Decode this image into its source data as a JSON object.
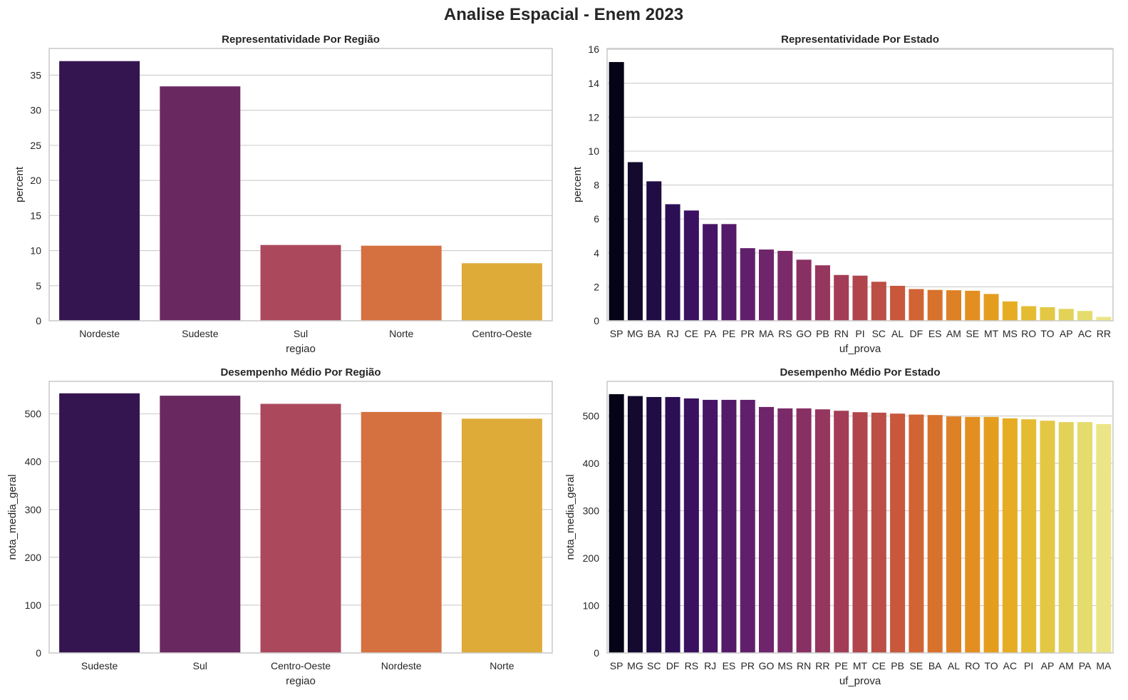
{
  "figure": {
    "title": "Analise Espacial - Enem 2023"
  },
  "chart_data": [
    {
      "id": "regiao_percent",
      "type": "bar",
      "title": "Representatividade Por Região",
      "xlabel": "regiao",
      "ylabel": "percent",
      "categories": [
        "Nordeste",
        "Sudeste",
        "Sul",
        "Norte",
        "Centro-Oeste"
      ],
      "values": [
        37.0,
        33.4,
        10.8,
        10.7,
        8.2
      ],
      "ylim": [
        0,
        38.8
      ],
      "yticks": [
        0,
        5,
        10,
        15,
        20,
        25,
        30,
        35
      ],
      "colors": [
        "#35154f",
        "#6a2860",
        "#ab485c",
        "#d57140",
        "#deab39"
      ],
      "grid": true,
      "legend": "none"
    },
    {
      "id": "uf_percent",
      "type": "bar",
      "title": "Representatividade Por Estado",
      "xlabel": "uf_prova",
      "ylabel": "percent",
      "categories": [
        "SP",
        "MG",
        "BA",
        "RJ",
        "CE",
        "PA",
        "PE",
        "PR",
        "MA",
        "RS",
        "GO",
        "PB",
        "RN",
        "PI",
        "SC",
        "AL",
        "DF",
        "ES",
        "AM",
        "SE",
        "MT",
        "MS",
        "RO",
        "TO",
        "AP",
        "AC",
        "RR"
      ],
      "values": [
        15.25,
        9.35,
        8.22,
        6.87,
        6.5,
        5.7,
        5.7,
        4.28,
        4.2,
        4.12,
        3.6,
        3.27,
        2.7,
        2.66,
        2.3,
        2.06,
        1.87,
        1.82,
        1.8,
        1.77,
        1.58,
        1.14,
        0.86,
        0.8,
        0.7,
        0.58,
        0.23
      ],
      "ylim": [
        0,
        16.05
      ],
      "yticks": [
        0,
        2,
        4,
        6,
        8,
        10,
        12,
        14,
        16
      ],
      "colors": [
        "#050416",
        "#130a2e",
        "#1f0d43",
        "#2b0f55",
        "#391160",
        "#461566",
        "#531a69",
        "#601f6b",
        "#6e256b",
        "#7a2a68",
        "#883064",
        "#95365f",
        "#a33d57",
        "#b0454d",
        "#bb4e45",
        "#c8573c",
        "#d16434",
        "#d8712b",
        "#de8025",
        "#e38e21",
        "#e59d20",
        "#e6ac24",
        "#e5bb32",
        "#e3c843",
        "#e2d257",
        "#e4dc6c",
        "#ebe587"
      ],
      "grid": true,
      "legend": "none"
    },
    {
      "id": "regiao_nota",
      "type": "bar",
      "title": "Desempenho Médio Por Região",
      "xlabel": "regiao",
      "ylabel": "nota_media_geral",
      "categories": [
        "Sudeste",
        "Sul",
        "Centro-Oeste",
        "Nordeste",
        "Norte"
      ],
      "values": [
        543,
        538,
        521,
        504,
        490
      ],
      "ylim": [
        0,
        568
      ],
      "yticks": [
        0,
        100,
        200,
        300,
        400,
        500
      ],
      "colors": [
        "#35154f",
        "#6a2860",
        "#ab485c",
        "#d57140",
        "#deab39"
      ],
      "grid": true,
      "legend": "none"
    },
    {
      "id": "uf_nota",
      "type": "bar",
      "title": "Desempenho Médio Por Estado",
      "xlabel": "uf_prova",
      "ylabel": "nota_media_geral",
      "categories": [
        "SP",
        "MG",
        "SC",
        "DF",
        "RS",
        "RJ",
        "ES",
        "PR",
        "GO",
        "MS",
        "RN",
        "RR",
        "PE",
        "MT",
        "CE",
        "PB",
        "SE",
        "BA",
        "AL",
        "RO",
        "TO",
        "AC",
        "PI",
        "AP",
        "AM",
        "PA",
        "MA"
      ],
      "values": [
        546,
        542,
        540,
        540,
        537,
        534,
        534,
        534,
        519,
        516,
        516,
        514,
        511,
        508,
        507,
        505,
        503,
        502,
        499,
        498,
        498,
        495,
        493,
        490,
        487,
        487,
        483
      ],
      "ylim": [
        0,
        573
      ],
      "yticks": [
        0,
        100,
        200,
        300,
        400,
        500
      ],
      "colors": [
        "#050416",
        "#130a2e",
        "#1f0d43",
        "#2b0f55",
        "#391160",
        "#461566",
        "#531a69",
        "#601f6b",
        "#6e256b",
        "#7a2a68",
        "#883064",
        "#95365f",
        "#a33d57",
        "#b0454d",
        "#bb4e45",
        "#c8573c",
        "#d16434",
        "#d8712b",
        "#de8025",
        "#e38e21",
        "#e59d20",
        "#e6ac24",
        "#e5bb32",
        "#e3c843",
        "#e2d257",
        "#e4dc6c",
        "#ebe587"
      ],
      "grid": true,
      "legend": "none"
    }
  ]
}
